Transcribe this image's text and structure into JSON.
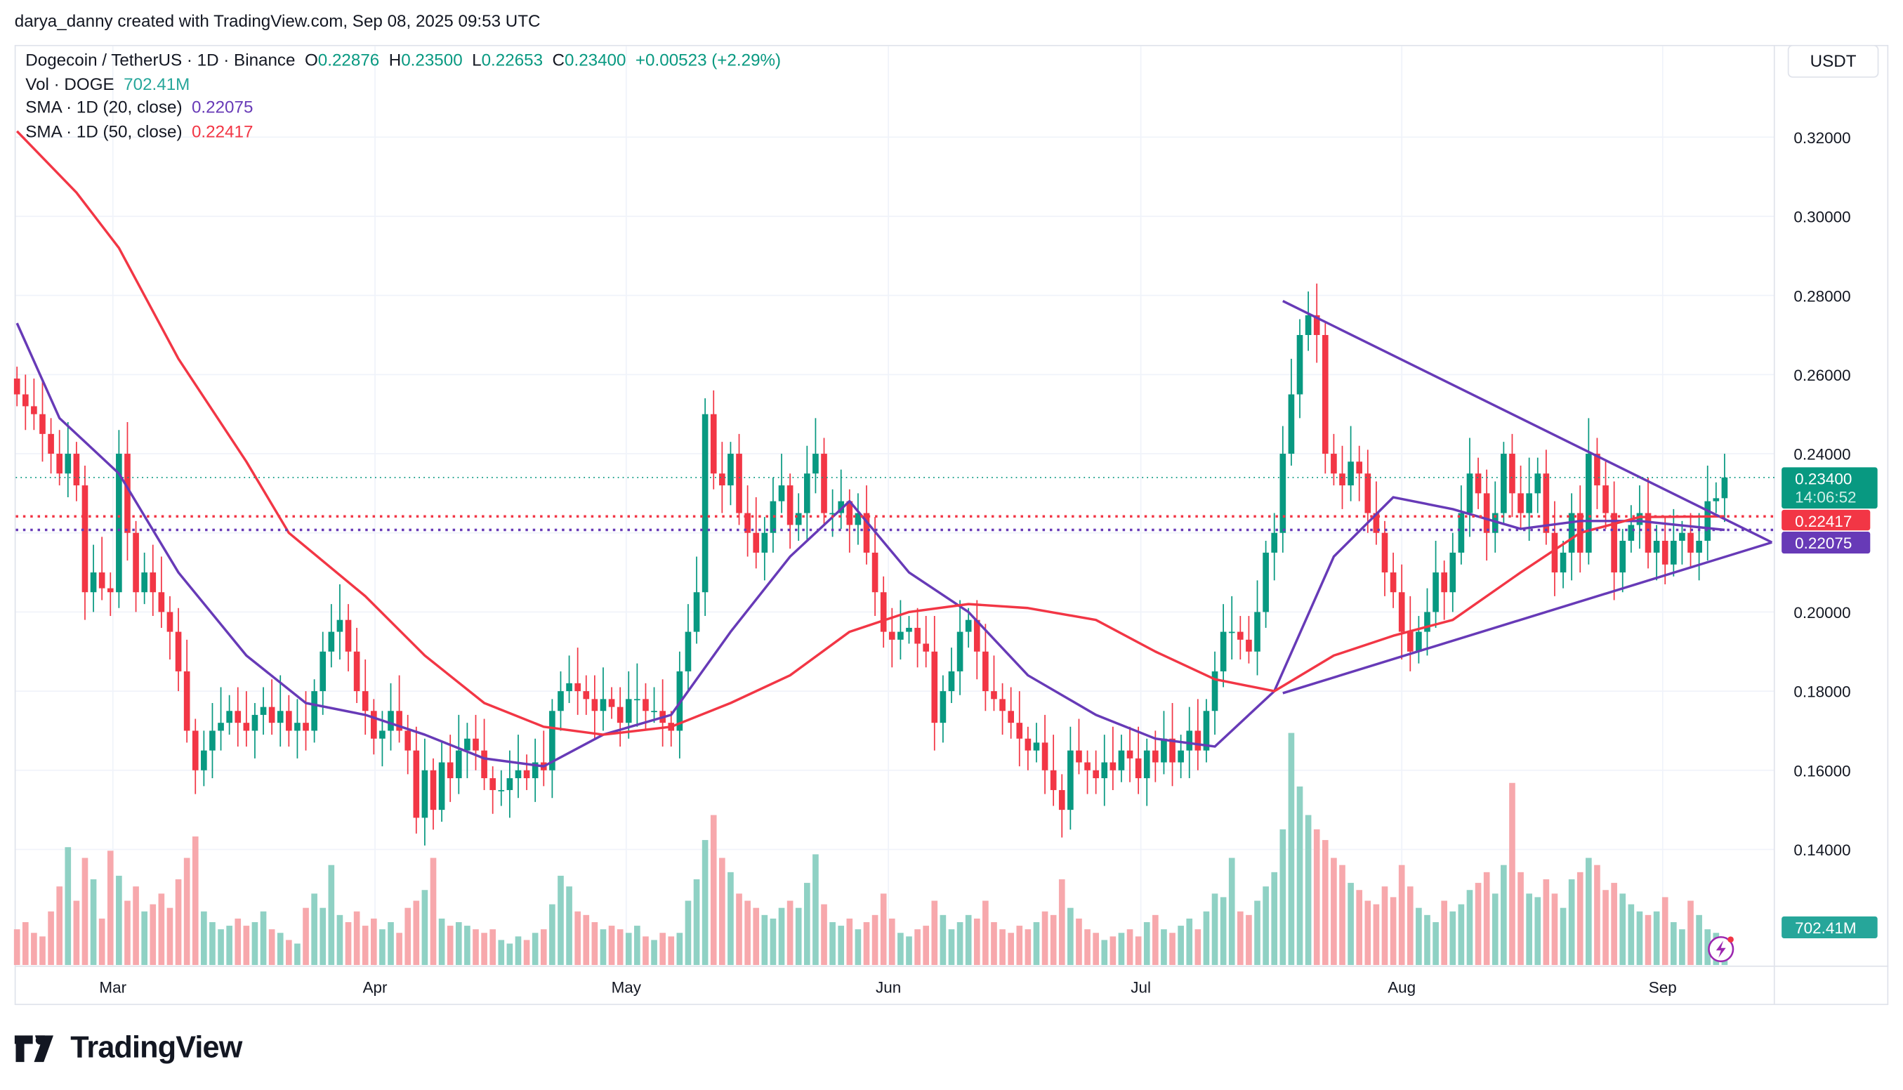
{
  "credit": "darya_danny created with TradingView.com, Sep 08, 2025 09:53 UTC",
  "legend": {
    "symbol": "Dogecoin / TetherUS · 1D · Binance",
    "o_label": "O",
    "o": "0.22876",
    "h_label": "H",
    "h": "0.23500",
    "l_label": "L",
    "l": "0.22653",
    "c_label": "C",
    "c": "0.23400",
    "change": "+0.00523 (+2.29%)",
    "vol_label": "Vol · DOGE",
    "vol": "702.41M",
    "sma20_label": "SMA · 1D (20, close)",
    "sma20": "0.22075",
    "sma50_label": "SMA · 1D (50, close)",
    "sma50": "0.22417"
  },
  "currency": "USDT",
  "price_tags": {
    "last": "0.23400",
    "countdown": "14:06:52",
    "sma50": "0.22417",
    "sma20": "0.22075",
    "volume": "702.41M"
  },
  "footer": {
    "brand": "TradingView"
  },
  "colors": {
    "up": "#089981",
    "down": "#f23645",
    "sma20": "#673ab7",
    "sma50": "#f23645",
    "volume_tag": "#26a69a",
    "trendline": "#673ab7"
  },
  "chart_data": {
    "type": "candlestick",
    "x_ticks": [
      "Mar",
      "Apr",
      "May",
      "Jun",
      "Jul",
      "Aug",
      "Sep"
    ],
    "y_ticks": [
      "0.32000",
      "0.30000",
      "0.28000",
      "0.26000",
      "0.24000",
      "0.20000",
      "0.18000",
      "0.16000",
      "0.14000"
    ],
    "ylim": [
      0.125,
      0.335
    ],
    "grid": true,
    "last_open": 0.22876,
    "close": [
      0.255,
      0.252,
      0.25,
      0.245,
      0.24,
      0.235,
      0.24,
      0.232,
      0.205,
      0.21,
      0.206,
      0.205,
      0.24,
      0.22,
      0.205,
      0.21,
      0.205,
      0.2,
      0.195,
      0.185,
      0.17,
      0.16,
      0.165,
      0.17,
      0.172,
      0.175,
      0.172,
      0.17,
      0.174,
      0.176,
      0.172,
      0.175,
      0.17,
      0.172,
      0.17,
      0.18,
      0.19,
      0.195,
      0.198,
      0.19,
      0.18,
      0.175,
      0.168,
      0.17,
      0.175,
      0.17,
      0.165,
      0.148,
      0.16,
      0.15,
      0.162,
      0.158,
      0.165,
      0.168,
      0.165,
      0.158,
      0.155,
      0.155,
      0.158,
      0.16,
      0.158,
      0.162,
      0.16,
      0.175,
      0.18,
      0.182,
      0.18,
      0.178,
      0.175,
      0.178,
      0.176,
      0.172,
      0.178,
      0.178,
      0.175,
      0.175,
      0.172,
      0.17,
      0.185,
      0.195,
      0.205,
      0.25,
      0.235,
      0.232,
      0.24,
      0.225,
      0.22,
      0.215,
      0.22,
      0.228,
      0.232,
      0.222,
      0.225,
      0.235,
      0.24,
      0.225,
      0.225,
      0.228,
      0.222,
      0.225,
      0.215,
      0.205,
      0.195,
      0.193,
      0.195,
      0.196,
      0.192,
      0.19,
      0.172,
      0.18,
      0.185,
      0.195,
      0.198,
      0.19,
      0.18,
      0.178,
      0.175,
      0.172,
      0.168,
      0.165,
      0.167,
      0.16,
      0.155,
      0.15,
      0.165,
      0.162,
      0.16,
      0.158,
      0.162,
      0.16,
      0.165,
      0.163,
      0.158,
      0.165,
      0.162,
      0.168,
      0.162,
      0.165,
      0.17,
      0.165,
      0.175,
      0.185,
      0.195,
      0.195,
      0.193,
      0.19,
      0.2,
      0.215,
      0.22,
      0.24,
      0.255,
      0.27,
      0.275,
      0.27,
      0.24,
      0.235,
      0.232,
      0.238,
      0.235,
      0.225,
      0.22,
      0.21,
      0.205,
      0.195,
      0.19,
      0.195,
      0.2,
      0.21,
      0.205,
      0.215,
      0.225,
      0.235,
      0.23,
      0.22,
      0.225,
      0.24,
      0.23,
      0.225,
      0.23,
      0.235,
      0.22,
      0.21,
      0.215,
      0.225,
      0.215,
      0.24,
      0.232,
      0.225,
      0.21,
      0.218,
      0.222,
      0.225,
      0.215,
      0.218,
      0.212,
      0.218,
      0.22,
      0.215,
      0.218,
      0.228,
      0.22876,
      0.234
    ],
    "volume_m": [
      1000,
      1200,
      900,
      800,
      1500,
      2200,
      3300,
      1800,
      3000,
      2400,
      1300,
      3200,
      2500,
      1800,
      2200,
      1500,
      1700,
      2000,
      1600,
      2400,
      3000,
      3600,
      1500,
      1200,
      1000,
      1100,
      1300,
      1100,
      1200,
      1500,
      1000,
      900,
      700,
      600,
      1600,
      2000,
      1600,
      2800,
      1400,
      1200,
      1500,
      1100,
      1300,
      1000,
      1200,
      900,
      1600,
      1800,
      2100,
      3000,
      1300,
      1100,
      1200,
      1100,
      1000,
      900,
      1000,
      700,
      600,
      800,
      700,
      900,
      1000,
      1700,
      2500,
      2200,
      1500,
      1400,
      1200,
      1000,
      1100,
      1000,
      900,
      1100,
      800,
      700,
      900,
      800,
      900,
      1800,
      2400,
      3500,
      4200,
      3000,
      2600,
      2000,
      1800,
      1600,
      1400,
      1300,
      1600,
      1800,
      1600,
      2300,
      3100,
      1700,
      1200,
      1100,
      1300,
      1000,
      1200,
      1400,
      2000,
      1300,
      900,
      800,
      1000,
      1100,
      1800,
      1400,
      1000,
      1200,
      1400,
      1300,
      1800,
      1200,
      1000,
      900,
      1100,
      1000,
      1200,
      1500,
      1400,
      2400,
      1600,
      1300,
      1000,
      900,
      700,
      800,
      900,
      1000,
      800,
      1200,
      1400,
      1000,
      900,
      1100,
      1300,
      1000,
      1500,
      2000,
      1900,
      3000,
      1500,
      1400,
      1800,
      2200,
      2600,
      3800,
      6500,
      5000,
      4200,
      3800,
      3500,
      3000,
      2800,
      2300,
      2100,
      1800,
      1700,
      2200,
      1900,
      2800,
      2200,
      1600,
      1400,
      1200,
      1800,
      1500,
      1700,
      2100,
      2300,
      2600,
      2000,
      2800,
      5100,
      2600,
      2000,
      1900,
      2400,
      2000,
      1600,
      2400,
      2600,
      3000,
      2800,
      2100,
      2300,
      2000,
      1700,
      1500,
      1400,
      1500,
      1900,
      1200,
      1000,
      1800,
      1400,
      1000,
      900,
      702.41
    ],
    "series": [
      {
        "name": "SMA · 1D (20, close)",
        "points": [
          [
            0,
            0.273
          ],
          [
            5,
            0.249
          ],
          [
            12,
            0.235
          ],
          [
            19,
            0.21
          ],
          [
            27,
            0.189
          ],
          [
            34,
            0.177
          ],
          [
            41,
            0.174
          ],
          [
            48,
            0.169
          ],
          [
            55,
            0.163
          ],
          [
            62,
            0.161
          ],
          [
            69,
            0.169
          ],
          [
            77,
            0.174
          ],
          [
            84,
            0.195
          ],
          [
            91,
            0.214
          ],
          [
            98,
            0.228
          ],
          [
            105,
            0.21
          ],
          [
            112,
            0.2
          ],
          [
            119,
            0.184
          ],
          [
            127,
            0.174
          ],
          [
            134,
            0.168
          ],
          [
            141,
            0.166
          ],
          [
            148,
            0.18
          ],
          [
            155,
            0.214
          ],
          [
            162,
            0.229
          ],
          [
            169,
            0.226
          ],
          [
            177,
            0.221
          ],
          [
            184,
            0.223
          ],
          [
            191,
            0.223
          ],
          [
            201,
            0.22075
          ]
        ]
      },
      {
        "name": "SMA · 1D (50, close)",
        "points": [
          [
            0,
            0.3215
          ],
          [
            7,
            0.306
          ],
          [
            12,
            0.292
          ],
          [
            19,
            0.264
          ],
          [
            27,
            0.238
          ],
          [
            32,
            0.22
          ],
          [
            41,
            0.204
          ],
          [
            48,
            0.189
          ],
          [
            55,
            0.177
          ],
          [
            62,
            0.171
          ],
          [
            69,
            0.169
          ],
          [
            77,
            0.171
          ],
          [
            84,
            0.177
          ],
          [
            91,
            0.184
          ],
          [
            98,
            0.195
          ],
          [
            105,
            0.2
          ],
          [
            112,
            0.202
          ],
          [
            119,
            0.201
          ],
          [
            127,
            0.198
          ],
          [
            134,
            0.19
          ],
          [
            141,
            0.183
          ],
          [
            148,
            0.18
          ],
          [
            155,
            0.189
          ],
          [
            162,
            0.194
          ],
          [
            169,
            0.198
          ],
          [
            177,
            0.21
          ],
          [
            184,
            0.22
          ],
          [
            191,
            0.224
          ],
          [
            201,
            0.22417
          ]
        ]
      }
    ],
    "trendlines": [
      {
        "from": {
          "date": "Jul 17",
          "price": 0.2786
        },
        "to": {
          "date": "Sep 13",
          "price": 0.2176
        }
      },
      {
        "from": {
          "date": "Jul 17",
          "price": 0.1795
        },
        "to": {
          "date": "Sep 13",
          "price": 0.2176
        }
      }
    ]
  }
}
